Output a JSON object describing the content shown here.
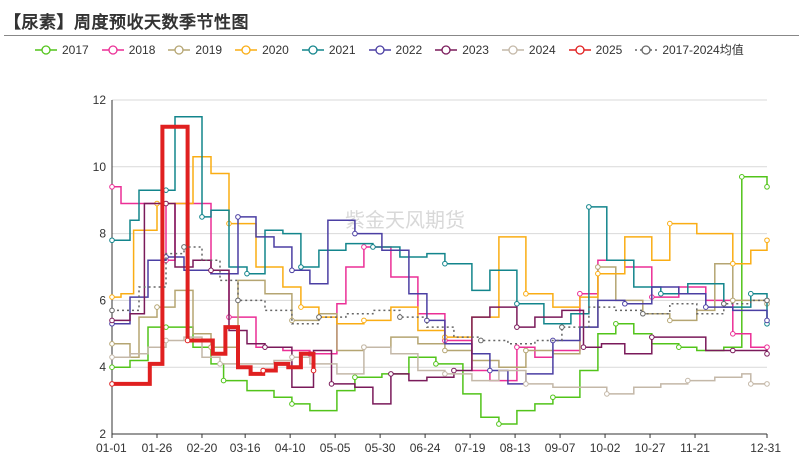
{
  "title": "【尿素】周度预收天数季节性图",
  "watermark": "紫金天风期货",
  "chart_data": {
    "type": "line",
    "title": "【尿素】周度预收天数季节性图",
    "xlabel": "",
    "ylabel": "",
    "ylim": [
      2,
      12
    ],
    "yticks": [
      2,
      4,
      6,
      8,
      10,
      12
    ],
    "xlim": [
      0,
      364
    ],
    "x_is_day_of_year": true,
    "xticks": [
      {
        "day": 0,
        "label": "01-01"
      },
      {
        "day": 25,
        "label": "01-26"
      },
      {
        "day": 50,
        "label": "02-20"
      },
      {
        "day": 74,
        "label": "03-16"
      },
      {
        "day": 99,
        "label": "04-10"
      },
      {
        "day": 124,
        "label": "05-05"
      },
      {
        "day": 149,
        "label": "05-30"
      },
      {
        "day": 174,
        "label": "06-24"
      },
      {
        "day": 199,
        "label": "07-19"
      },
      {
        "day": 224,
        "label": "08-13"
      },
      {
        "day": 249,
        "label": "09-07"
      },
      {
        "day": 274,
        "label": "10-02"
      },
      {
        "day": 299,
        "label": "10-27"
      },
      {
        "day": 324,
        "label": "11-21"
      },
      {
        "day": 364,
        "label": "12-31"
      }
    ],
    "grid": "horizontal",
    "legend_position": "top",
    "series": [
      {
        "name": "2017",
        "color": "#52c41a",
        "width": 1.5,
        "dash": "",
        "points": [
          [
            0,
            4.0
          ],
          [
            10,
            4.2
          ],
          [
            20,
            5.2
          ],
          [
            30,
            5.2
          ],
          [
            45,
            4.6
          ],
          [
            55,
            4.1
          ],
          [
            62,
            3.6
          ],
          [
            75,
            3.3
          ],
          [
            90,
            3.1
          ],
          [
            100,
            2.9
          ],
          [
            110,
            2.7
          ],
          [
            125,
            3.3
          ],
          [
            135,
            3.7
          ],
          [
            150,
            3.8
          ],
          [
            165,
            4.3
          ],
          [
            180,
            4.1
          ],
          [
            195,
            3.2
          ],
          [
            205,
            2.5
          ],
          [
            215,
            2.3
          ],
          [
            225,
            2.7
          ],
          [
            235,
            2.9
          ],
          [
            245,
            3.1
          ],
          [
            260,
            3.9
          ],
          [
            270,
            5.0
          ],
          [
            280,
            5.3
          ],
          [
            290,
            5.0
          ],
          [
            300,
            4.7
          ],
          [
            315,
            4.6
          ],
          [
            325,
            4.5
          ],
          [
            340,
            4.6
          ],
          [
            350,
            9.7
          ],
          [
            364,
            9.4
          ]
        ]
      },
      {
        "name": "2018",
        "color": "#eb2f96",
        "width": 1.5,
        "dash": "",
        "points": [
          [
            0,
            9.4
          ],
          [
            5,
            8.9
          ],
          [
            20,
            8.9
          ],
          [
            30,
            7.2
          ],
          [
            35,
            8.9
          ],
          [
            55,
            6.8
          ],
          [
            65,
            5.5
          ],
          [
            80,
            4.6
          ],
          [
            95,
            4.5
          ],
          [
            110,
            4.4
          ],
          [
            125,
            5.9
          ],
          [
            130,
            7.0
          ],
          [
            140,
            7.6
          ],
          [
            155,
            6.7
          ],
          [
            170,
            5.6
          ],
          [
            185,
            4.8
          ],
          [
            200,
            3.9
          ],
          [
            210,
            3.6
          ],
          [
            225,
            4.6
          ],
          [
            235,
            4.3
          ],
          [
            245,
            4.5
          ],
          [
            260,
            6.2
          ],
          [
            270,
            7.2
          ],
          [
            285,
            7.0
          ],
          [
            300,
            6.1
          ],
          [
            315,
            6.4
          ],
          [
            330,
            6.0
          ],
          [
            345,
            5.0
          ],
          [
            355,
            4.6
          ],
          [
            364,
            4.6
          ]
        ]
      },
      {
        "name": "2019",
        "color": "#b5a572",
        "width": 1.5,
        "dash": "",
        "points": [
          [
            0,
            4.7
          ],
          [
            10,
            4.3
          ],
          [
            15,
            5.5
          ],
          [
            25,
            5.8
          ],
          [
            35,
            6.3
          ],
          [
            45,
            5.0
          ],
          [
            55,
            4.6
          ],
          [
            70,
            6.6
          ],
          [
            85,
            6.2
          ],
          [
            100,
            5.4
          ],
          [
            115,
            5.6
          ],
          [
            125,
            4.5
          ],
          [
            140,
            4.6
          ],
          [
            155,
            4.9
          ],
          [
            170,
            4.7
          ],
          [
            185,
            4.5
          ],
          [
            200,
            4.2
          ],
          [
            215,
            4.0
          ],
          [
            230,
            4.5
          ],
          [
            245,
            4.4
          ],
          [
            260,
            5.2
          ],
          [
            270,
            7.0
          ],
          [
            280,
            6.0
          ],
          [
            295,
            5.6
          ],
          [
            310,
            5.4
          ],
          [
            325,
            5.7
          ],
          [
            335,
            7.1
          ],
          [
            345,
            6.0
          ],
          [
            364,
            5.9
          ]
        ]
      },
      {
        "name": "2020",
        "color": "#faad14",
        "width": 1.5,
        "dash": "",
        "points": [
          [
            0,
            6.1
          ],
          [
            5,
            6.2
          ],
          [
            12,
            8.1
          ],
          [
            25,
            8.9
          ],
          [
            45,
            10.3
          ],
          [
            55,
            9.8
          ],
          [
            65,
            8.3
          ],
          [
            80,
            7.0
          ],
          [
            95,
            6.4
          ],
          [
            105,
            5.8
          ],
          [
            115,
            5.5
          ],
          [
            125,
            5.3
          ],
          [
            140,
            5.4
          ],
          [
            155,
            5.8
          ],
          [
            170,
            5.1
          ],
          [
            185,
            4.9
          ],
          [
            200,
            5.5
          ],
          [
            215,
            7.9
          ],
          [
            230,
            6.2
          ],
          [
            245,
            5.8
          ],
          [
            260,
            6.1
          ],
          [
            270,
            6.8
          ],
          [
            285,
            7.9
          ],
          [
            300,
            7.2
          ],
          [
            310,
            8.3
          ],
          [
            325,
            8.0
          ],
          [
            335,
            8.0
          ],
          [
            345,
            7.1
          ],
          [
            355,
            7.5
          ],
          [
            364,
            7.8
          ]
        ]
      },
      {
        "name": "2021",
        "color": "#13858c",
        "width": 1.5,
        "dash": "",
        "points": [
          [
            0,
            7.8
          ],
          [
            10,
            8.4
          ],
          [
            15,
            9.3
          ],
          [
            30,
            9.3
          ],
          [
            35,
            11.5
          ],
          [
            48,
            11.5
          ],
          [
            50,
            8.5
          ],
          [
            55,
            8.7
          ],
          [
            65,
            7.0
          ],
          [
            75,
            6.8
          ],
          [
            85,
            8.1
          ],
          [
            95,
            8.0
          ],
          [
            105,
            7.0
          ],
          [
            115,
            7.5
          ],
          [
            130,
            7.7
          ],
          [
            145,
            7.6
          ],
          [
            160,
            7.3
          ],
          [
            175,
            7.4
          ],
          [
            185,
            7.1
          ],
          [
            200,
            6.3
          ],
          [
            210,
            6.9
          ],
          [
            225,
            5.9
          ],
          [
            240,
            5.3
          ],
          [
            255,
            5.6
          ],
          [
            265,
            8.8
          ],
          [
            275,
            7.2
          ],
          [
            290,
            6.4
          ],
          [
            305,
            6.2
          ],
          [
            320,
            6.5
          ],
          [
            340,
            5.8
          ],
          [
            355,
            6.2
          ],
          [
            364,
            5.3
          ]
        ]
      },
      {
        "name": "2022",
        "color": "#4b3fa3",
        "width": 1.5,
        "dash": "",
        "points": [
          [
            0,
            5.3
          ],
          [
            10,
            6.1
          ],
          [
            20,
            7.2
          ],
          [
            30,
            7.3
          ],
          [
            40,
            6.9
          ],
          [
            55,
            6.8
          ],
          [
            70,
            8.5
          ],
          [
            80,
            7.9
          ],
          [
            90,
            7.6
          ],
          [
            100,
            6.9
          ],
          [
            110,
            6.5
          ],
          [
            120,
            8.4
          ],
          [
            135,
            8.0
          ],
          [
            150,
            7.5
          ],
          [
            165,
            6.2
          ],
          [
            175,
            5.4
          ],
          [
            185,
            4.7
          ],
          [
            200,
            4.4
          ],
          [
            210,
            3.9
          ],
          [
            220,
            3.5
          ],
          [
            230,
            3.8
          ],
          [
            245,
            4.8
          ],
          [
            260,
            5.2
          ],
          [
            270,
            6.0
          ],
          [
            285,
            5.9
          ],
          [
            300,
            6.4
          ],
          [
            315,
            6.2
          ],
          [
            330,
            5.8
          ],
          [
            345,
            5.7
          ],
          [
            364,
            5.4
          ]
        ]
      },
      {
        "name": "2023",
        "color": "#7a1a5a",
        "width": 1.5,
        "dash": "",
        "points": [
          [
            0,
            5.4
          ],
          [
            10,
            5.6
          ],
          [
            18,
            8.9
          ],
          [
            30,
            8.9
          ],
          [
            35,
            7.0
          ],
          [
            45,
            7.2
          ],
          [
            55,
            6.9
          ],
          [
            65,
            5.1
          ],
          [
            75,
            4.7
          ],
          [
            85,
            4.6
          ],
          [
            100,
            3.4
          ],
          [
            112,
            4.5
          ],
          [
            122,
            3.5
          ],
          [
            135,
            3.4
          ],
          [
            145,
            2.9
          ],
          [
            155,
            3.8
          ],
          [
            165,
            3.6
          ],
          [
            175,
            3.7
          ],
          [
            190,
            3.9
          ],
          [
            200,
            5.5
          ],
          [
            210,
            5.8
          ],
          [
            225,
            5.2
          ],
          [
            235,
            5.5
          ],
          [
            250,
            5.7
          ],
          [
            262,
            4.6
          ],
          [
            272,
            4.7
          ],
          [
            285,
            4.4
          ],
          [
            300,
            4.9
          ],
          [
            315,
            4.9
          ],
          [
            330,
            4.5
          ],
          [
            345,
            4.5
          ],
          [
            364,
            4.4
          ]
        ]
      },
      {
        "name": "2024",
        "color": "#c4b8a8",
        "width": 1.5,
        "dash": "",
        "points": [
          [
            0,
            4.3
          ],
          [
            10,
            4.4
          ],
          [
            20,
            4.6
          ],
          [
            30,
            4.8
          ],
          [
            40,
            4.9
          ],
          [
            50,
            4.3
          ],
          [
            60,
            4.1
          ],
          [
            75,
            4.1
          ],
          [
            90,
            4.2
          ],
          [
            100,
            4.3
          ],
          [
            110,
            4.1
          ],
          [
            125,
            3.8
          ],
          [
            140,
            4.6
          ],
          [
            155,
            4.4
          ],
          [
            170,
            3.9
          ],
          [
            185,
            3.8
          ],
          [
            200,
            3.6
          ],
          [
            215,
            3.9
          ],
          [
            230,
            3.5
          ],
          [
            245,
            3.4
          ],
          [
            260,
            3.4
          ],
          [
            275,
            3.2
          ],
          [
            290,
            3.4
          ],
          [
            305,
            3.5
          ],
          [
            320,
            3.6
          ],
          [
            335,
            3.7
          ],
          [
            350,
            3.8
          ],
          [
            355,
            3.5
          ],
          [
            364,
            3.5
          ]
        ]
      },
      {
        "name": "2025",
        "color": "#e02020",
        "width": 4,
        "dash": "",
        "points": [
          [
            0,
            3.5
          ],
          [
            7,
            3.5
          ],
          [
            14,
            3.5
          ],
          [
            21,
            4.1
          ],
          [
            28,
            11.2
          ],
          [
            35,
            11.2
          ],
          [
            42,
            4.8
          ],
          [
            49,
            4.8
          ],
          [
            56,
            4.4
          ],
          [
            63,
            5.2
          ],
          [
            70,
            4.0
          ],
          [
            77,
            3.8
          ],
          [
            84,
            3.9
          ],
          [
            91,
            4.1
          ],
          [
            98,
            4.0
          ],
          [
            105,
            4.4
          ],
          [
            112,
            3.9
          ]
        ]
      },
      {
        "name": "2017-2024均值",
        "color": "#666666",
        "width": 1.5,
        "dash": "2,3",
        "points": [
          [
            0,
            5.7
          ],
          [
            15,
            6.4
          ],
          [
            30,
            7.4
          ],
          [
            40,
            7.6
          ],
          [
            50,
            7.2
          ],
          [
            60,
            6.6
          ],
          [
            70,
            6.0
          ],
          [
            85,
            5.7
          ],
          [
            100,
            5.3
          ],
          [
            115,
            5.5
          ],
          [
            130,
            5.6
          ],
          [
            145,
            5.7
          ],
          [
            160,
            5.5
          ],
          [
            175,
            5.2
          ],
          [
            190,
            4.9
          ],
          [
            205,
            4.8
          ],
          [
            220,
            4.7
          ],
          [
            235,
            4.8
          ],
          [
            250,
            5.2
          ],
          [
            265,
            5.8
          ],
          [
            280,
            5.7
          ],
          [
            295,
            5.6
          ],
          [
            310,
            5.9
          ],
          [
            325,
            5.6
          ],
          [
            340,
            5.9
          ],
          [
            355,
            6.0
          ],
          [
            364,
            6.0
          ]
        ]
      }
    ]
  }
}
